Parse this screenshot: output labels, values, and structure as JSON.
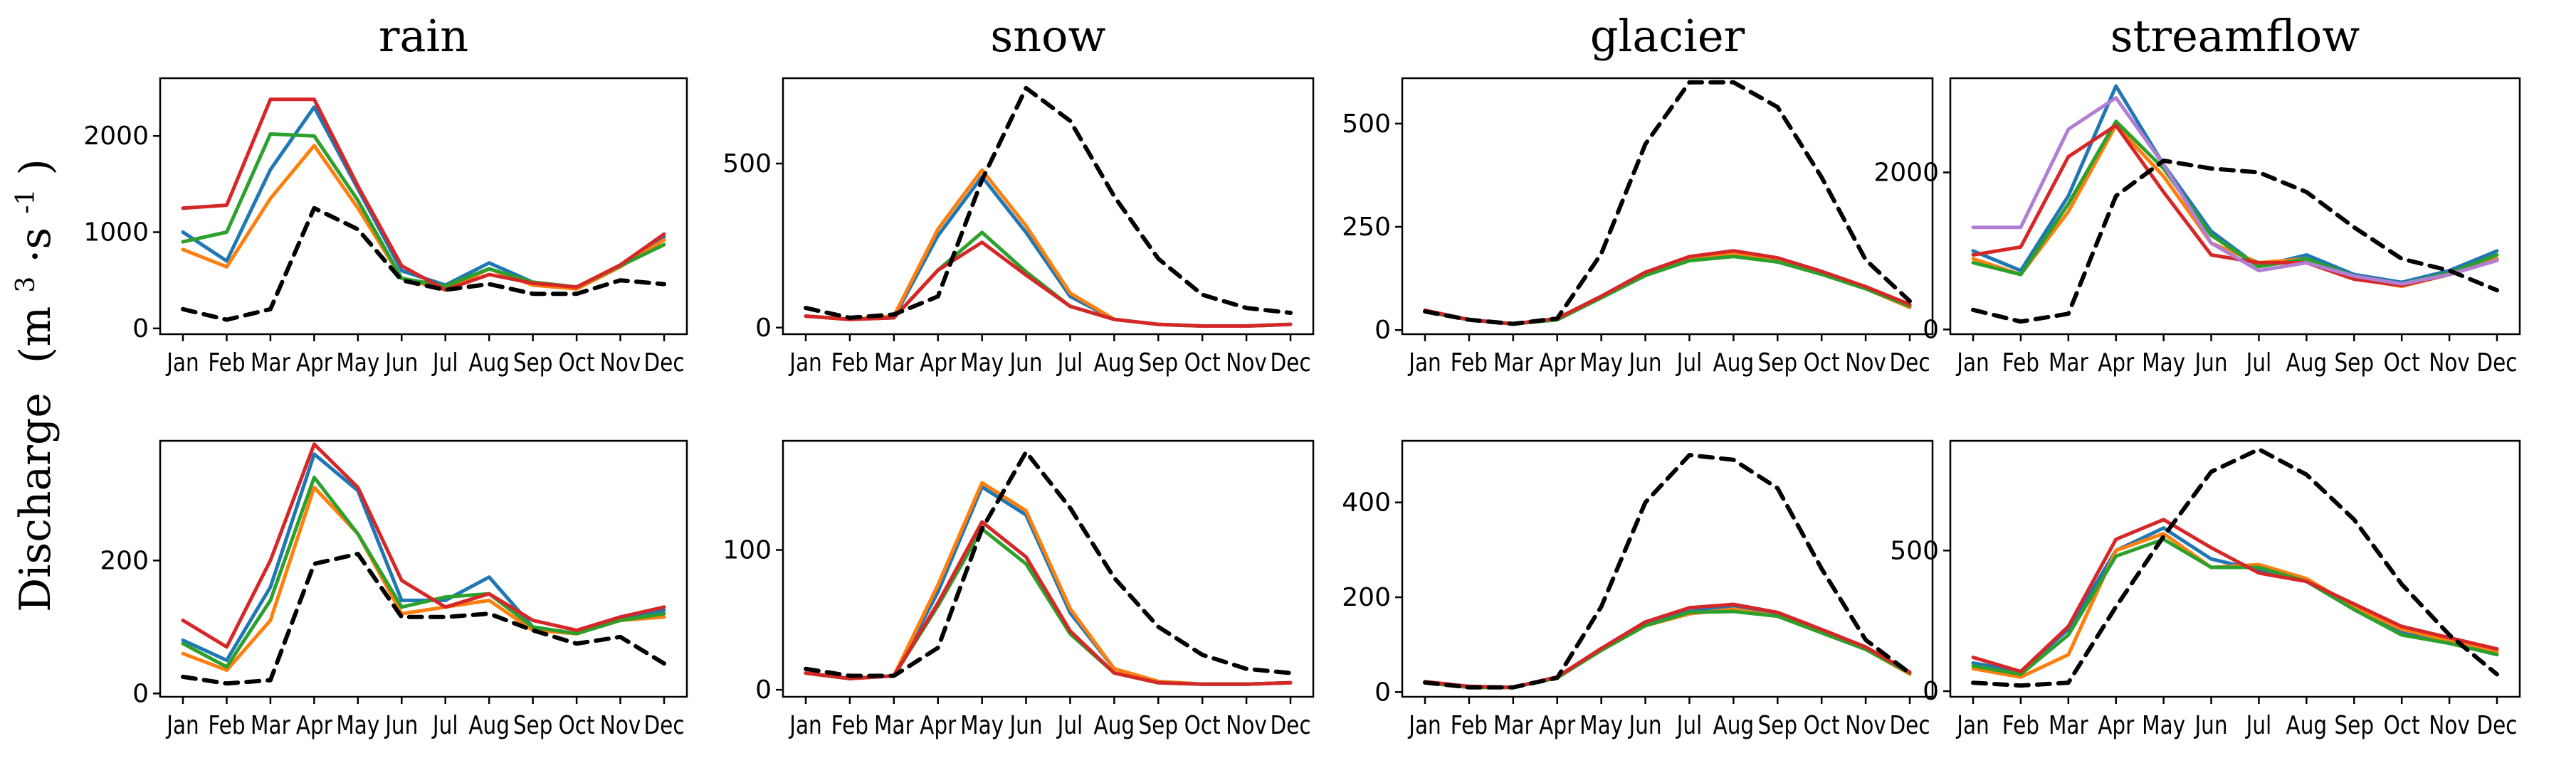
{
  "figure": {
    "ylabel_main": "Discharge",
    "ylabel_unit_open": "(m",
    "ylabel_unit_sup1": "3",
    "ylabel_unit_mid": "·s",
    "ylabel_unit_sup2": "-1",
    "ylabel_unit_close": ")"
  },
  "colors": {
    "blue": "#1f77b4",
    "orange": "#ff7f0e",
    "green": "#2ca02c",
    "red": "#d62728",
    "black": "#000000"
  },
  "chart_data": [
    {
      "type": "line",
      "title": "rain",
      "row": 0,
      "col": 0,
      "categories": [
        "Jan",
        "Feb",
        "Mar",
        "Apr",
        "May",
        "Jun",
        "Jul",
        "Aug",
        "Sep",
        "Oct",
        "Nov",
        "Dec"
      ],
      "ylim": [
        -60,
        2600
      ],
      "yticks": [
        0,
        1000,
        2000
      ],
      "series": [
        {
          "name": "blue",
          "color": "#1f77b4",
          "dashed": false,
          "values": [
            1000,
            700,
            1650,
            2300,
            1450,
            600,
            450,
            680,
            480,
            430,
            650,
            950
          ]
        },
        {
          "name": "orange",
          "color": "#ff7f0e",
          "dashed": false,
          "values": [
            820,
            640,
            1350,
            1900,
            1250,
            520,
            400,
            620,
            450,
            410,
            640,
            920
          ]
        },
        {
          "name": "green",
          "color": "#2ca02c",
          "dashed": false,
          "values": [
            900,
            1000,
            2020,
            2000,
            1330,
            520,
            440,
            620,
            480,
            430,
            650,
            870
          ]
        },
        {
          "name": "red",
          "color": "#d62728",
          "dashed": false,
          "values": [
            1250,
            1280,
            2380,
            2380,
            1480,
            650,
            400,
            560,
            470,
            430,
            660,
            980
          ]
        },
        {
          "name": "dashed",
          "color": "#000000",
          "dashed": true,
          "values": [
            200,
            90,
            200,
            1250,
            1030,
            500,
            400,
            460,
            360,
            360,
            500,
            460
          ]
        }
      ]
    },
    {
      "type": "line",
      "title": "snow",
      "row": 0,
      "col": 1,
      "categories": [
        "Jan",
        "Feb",
        "Mar",
        "Apr",
        "May",
        "Jun",
        "Jul",
        "Aug",
        "Sep",
        "Oct",
        "Nov",
        "Dec"
      ],
      "ylim": [
        -20,
        760
      ],
      "yticks": [
        0,
        500
      ],
      "series": [
        {
          "name": "blue",
          "color": "#1f77b4",
          "dashed": false,
          "values": [
            35,
            25,
            30,
            280,
            460,
            290,
            95,
            25,
            10,
            5,
            5,
            10
          ]
        },
        {
          "name": "orange",
          "color": "#ff7f0e",
          "dashed": false,
          "values": [
            35,
            25,
            35,
            300,
            480,
            310,
            105,
            25,
            10,
            5,
            5,
            10
          ]
        },
        {
          "name": "green",
          "color": "#2ca02c",
          "dashed": false,
          "values": [
            35,
            25,
            30,
            175,
            290,
            170,
            65,
            25,
            10,
            5,
            5,
            10
          ]
        },
        {
          "name": "red",
          "color": "#d62728",
          "dashed": false,
          "values": [
            35,
            25,
            30,
            175,
            260,
            160,
            65,
            25,
            10,
            5,
            5,
            10
          ]
        },
        {
          "name": "dashed",
          "color": "#000000",
          "dashed": true,
          "values": [
            60,
            30,
            40,
            95,
            450,
            730,
            630,
            400,
            210,
            100,
            60,
            45
          ]
        }
      ]
    },
    {
      "type": "line",
      "title": "glacier",
      "row": 0,
      "col": 2,
      "categories": [
        "Jan",
        "Feb",
        "Mar",
        "Apr",
        "May",
        "Jun",
        "Jul",
        "Aug",
        "Sep",
        "Oct",
        "Nov",
        "Dec"
      ],
      "ylim": [
        -10,
        610
      ],
      "yticks": [
        0,
        250,
        500
      ],
      "series": [
        {
          "name": "blue",
          "color": "#1f77b4",
          "dashed": false,
          "values": [
            45,
            25,
            15,
            25,
            80,
            135,
            170,
            180,
            165,
            135,
            100,
            60
          ]
        },
        {
          "name": "orange",
          "color": "#ff7f0e",
          "dashed": false,
          "values": [
            45,
            25,
            15,
            25,
            80,
            135,
            170,
            185,
            170,
            140,
            100,
            55
          ]
        },
        {
          "name": "green",
          "color": "#2ca02c",
          "dashed": false,
          "values": [
            45,
            25,
            15,
            25,
            78,
            132,
            168,
            178,
            165,
            135,
            100,
            58
          ]
        },
        {
          "name": "red",
          "color": "#d62728",
          "dashed": false,
          "values": [
            48,
            25,
            15,
            28,
            82,
            140,
            178,
            192,
            175,
            142,
            105,
            62
          ]
        },
        {
          "name": "dashed",
          "color": "#000000",
          "dashed": true,
          "values": [
            45,
            25,
            15,
            28,
            185,
            450,
            600,
            600,
            540,
            370,
            170,
            70
          ]
        }
      ]
    },
    {
      "type": "line",
      "title": "streamflow",
      "row": 0,
      "col": 3,
      "categories": [
        "Jan",
        "Feb",
        "Mar",
        "Apr",
        "May",
        "Jun",
        "Jul",
        "Aug",
        "Sep",
        "Oct",
        "Nov",
        "Dec"
      ],
      "ylim": [
        -60,
        3200
      ],
      "yticks": [
        0,
        2000
      ],
      "series": [
        {
          "name": "blue",
          "color": "#1f77b4",
          "dashed": false,
          "values": [
            1000,
            750,
            1700,
            3100,
            2100,
            1250,
            800,
            950,
            700,
            600,
            750,
            1000
          ]
        },
        {
          "name": "orange",
          "color": "#ff7f0e",
          "dashed": false,
          "values": [
            900,
            700,
            1500,
            2600,
            1950,
            1100,
            850,
            900,
            650,
            550,
            700,
            900
          ]
        },
        {
          "name": "green",
          "color": "#2ca02c",
          "dashed": false,
          "values": [
            850,
            700,
            1600,
            2650,
            2050,
            1200,
            800,
            900,
            680,
            580,
            720,
            950
          ]
        },
        {
          "name": "red",
          "color": "#d62728",
          "dashed": false,
          "values": [
            950,
            1050,
            2200,
            2600,
            1750,
            950,
            850,
            850,
            640,
            560,
            700,
            880
          ]
        },
        {
          "name": "purple",
          "color": "#b07fd4",
          "dashed": false,
          "values": [
            1300,
            1300,
            2550,
            2950,
            2100,
            1100,
            750,
            850,
            680,
            580,
            700,
            880
          ]
        },
        {
          "name": "dashed",
          "color": "#000000",
          "dashed": true,
          "values": [
            250,
            100,
            200,
            1700,
            2150,
            2050,
            2000,
            1750,
            1300,
            900,
            750,
            500
          ]
        }
      ]
    },
    {
      "type": "line",
      "title": "",
      "row": 1,
      "col": 0,
      "categories": [
        "Jan",
        "Feb",
        "Mar",
        "Apr",
        "May",
        "Jun",
        "Jul",
        "Aug",
        "Sep",
        "Oct",
        "Nov",
        "Dec"
      ],
      "ylim": [
        -5,
        380
      ],
      "yticks": [
        0,
        200
      ],
      "series": [
        {
          "name": "blue",
          "color": "#1f77b4",
          "dashed": false,
          "values": [
            80,
            50,
            160,
            360,
            305,
            140,
            140,
            175,
            100,
            90,
            115,
            125
          ]
        },
        {
          "name": "orange",
          "color": "#ff7f0e",
          "dashed": false,
          "values": [
            60,
            35,
            110,
            310,
            240,
            120,
            130,
            140,
            95,
            90,
            110,
            115
          ]
        },
        {
          "name": "green",
          "color": "#2ca02c",
          "dashed": false,
          "values": [
            75,
            40,
            140,
            325,
            240,
            130,
            145,
            150,
            100,
            90,
            110,
            120
          ]
        },
        {
          "name": "red",
          "color": "#d62728",
          "dashed": false,
          "values": [
            110,
            70,
            200,
            375,
            310,
            170,
            130,
            150,
            110,
            95,
            115,
            130
          ]
        },
        {
          "name": "dashed",
          "color": "#000000",
          "dashed": true,
          "values": [
            25,
            15,
            20,
            195,
            210,
            115,
            115,
            120,
            95,
            75,
            85,
            45
          ]
        }
      ]
    },
    {
      "type": "line",
      "title": "",
      "row": 1,
      "col": 1,
      "categories": [
        "Jan",
        "Feb",
        "Mar",
        "Apr",
        "May",
        "Jun",
        "Jul",
        "Aug",
        "Sep",
        "Oct",
        "Nov",
        "Dec"
      ],
      "ylim": [
        -5,
        178
      ],
      "yticks": [
        0,
        100
      ],
      "series": [
        {
          "name": "blue",
          "color": "#1f77b4",
          "dashed": false,
          "values": [
            12,
            8,
            10,
            70,
            145,
            125,
            55,
            15,
            6,
            4,
            4,
            5
          ]
        },
        {
          "name": "orange",
          "color": "#ff7f0e",
          "dashed": false,
          "values": [
            12,
            8,
            10,
            75,
            148,
            128,
            58,
            15,
            6,
            4,
            4,
            5
          ]
        },
        {
          "name": "green",
          "color": "#2ca02c",
          "dashed": false,
          "values": [
            12,
            8,
            10,
            60,
            115,
            90,
            40,
            12,
            5,
            4,
            4,
            5
          ]
        },
        {
          "name": "red",
          "color": "#d62728",
          "dashed": false,
          "values": [
            12,
            8,
            10,
            62,
            120,
            95,
            42,
            12,
            5,
            4,
            4,
            5
          ]
        },
        {
          "name": "dashed",
          "color": "#000000",
          "dashed": true,
          "values": [
            15,
            10,
            10,
            30,
            115,
            170,
            130,
            80,
            45,
            25,
            15,
            12
          ]
        }
      ]
    },
    {
      "type": "line",
      "title": "",
      "row": 1,
      "col": 2,
      "categories": [
        "Jan",
        "Feb",
        "Mar",
        "Apr",
        "May",
        "Jun",
        "Jul",
        "Aug",
        "Sep",
        "Oct",
        "Nov",
        "Dec"
      ],
      "ylim": [
        -10,
        530
      ],
      "yticks": [
        0,
        200,
        400
      ],
      "series": [
        {
          "name": "blue",
          "color": "#1f77b4",
          "dashed": false,
          "values": [
            20,
            10,
            10,
            30,
            90,
            145,
            170,
            180,
            165,
            130,
            95,
            40
          ]
        },
        {
          "name": "orange",
          "color": "#ff7f0e",
          "dashed": false,
          "values": [
            20,
            10,
            10,
            30,
            88,
            140,
            165,
            175,
            160,
            125,
            90,
            38
          ]
        },
        {
          "name": "green",
          "color": "#2ca02c",
          "dashed": false,
          "values": [
            20,
            10,
            10,
            30,
            88,
            140,
            168,
            170,
            160,
            125,
            90,
            40
          ]
        },
        {
          "name": "red",
          "color": "#d62728",
          "dashed": false,
          "values": [
            22,
            12,
            10,
            32,
            92,
            148,
            178,
            185,
            168,
            132,
            95,
            42
          ]
        },
        {
          "name": "dashed",
          "color": "#000000",
          "dashed": true,
          "values": [
            20,
            10,
            10,
            30,
            180,
            400,
            500,
            490,
            430,
            260,
            110,
            40
          ]
        }
      ]
    },
    {
      "type": "line",
      "title": "",
      "row": 1,
      "col": 3,
      "categories": [
        "Jan",
        "Feb",
        "Mar",
        "Apr",
        "May",
        "Jun",
        "Jul",
        "Aug",
        "Sep",
        "Oct",
        "Nov",
        "Dec"
      ],
      "ylim": [
        -20,
        890
      ],
      "yticks": [
        0,
        500
      ],
      "series": [
        {
          "name": "blue",
          "color": "#1f77b4",
          "dashed": false,
          "values": [
            100,
            70,
            220,
            500,
            580,
            470,
            430,
            400,
            290,
            210,
            180,
            150
          ]
        },
        {
          "name": "orange",
          "color": "#ff7f0e",
          "dashed": false,
          "values": [
            80,
            50,
            130,
            500,
            560,
            440,
            450,
            400,
            300,
            220,
            180,
            140
          ]
        },
        {
          "name": "green",
          "color": "#2ca02c",
          "dashed": false,
          "values": [
            90,
            60,
            200,
            480,
            540,
            440,
            440,
            390,
            290,
            200,
            170,
            130
          ]
        },
        {
          "name": "red",
          "color": "#d62728",
          "dashed": false,
          "values": [
            120,
            70,
            230,
            540,
            610,
            510,
            420,
            390,
            310,
            230,
            190,
            150
          ]
        },
        {
          "name": "dashed",
          "color": "#000000",
          "dashed": true,
          "values": [
            30,
            20,
            30,
            300,
            550,
            780,
            860,
            770,
            610,
            380,
            200,
            60
          ]
        }
      ]
    }
  ]
}
